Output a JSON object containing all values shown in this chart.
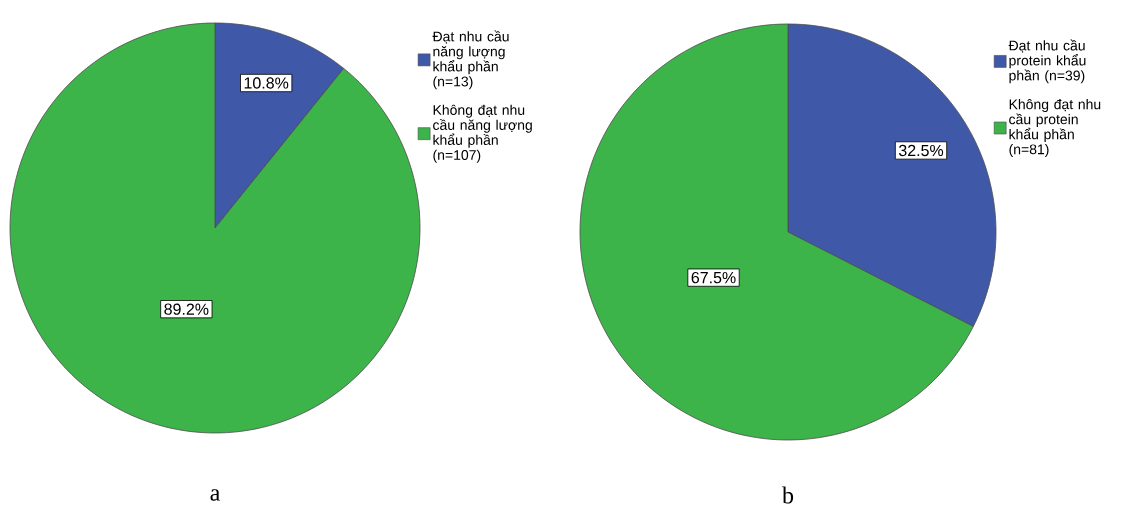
{
  "chart_data": [
    {
      "type": "pie",
      "categories": [
        "Đạt nhu cầu năng lượng khẩu phần (n=13)",
        "Không đạt nhu cầu năng lượng khẩu phần (n=107)"
      ],
      "values": [
        10.8,
        89.2
      ],
      "value_labels": [
        "10.8%",
        "89.2%"
      ],
      "colors": [
        "#3f59a8",
        "#3cb44a"
      ],
      "legend": "right",
      "annotations": [
        "a"
      ]
    },
    {
      "type": "pie",
      "categories": [
        "Đạt nhu cầu protein khẩu phần (n=39)",
        "Không đạt nhu cầu protein khẩu phần (n=81)"
      ],
      "values": [
        32.5,
        67.5
      ],
      "value_labels": [
        "32.5%",
        "67.5%"
      ],
      "colors": [
        "#3f59a8",
        "#3cb44a"
      ],
      "legend": "right",
      "annotations": [
        "b"
      ]
    }
  ]
}
